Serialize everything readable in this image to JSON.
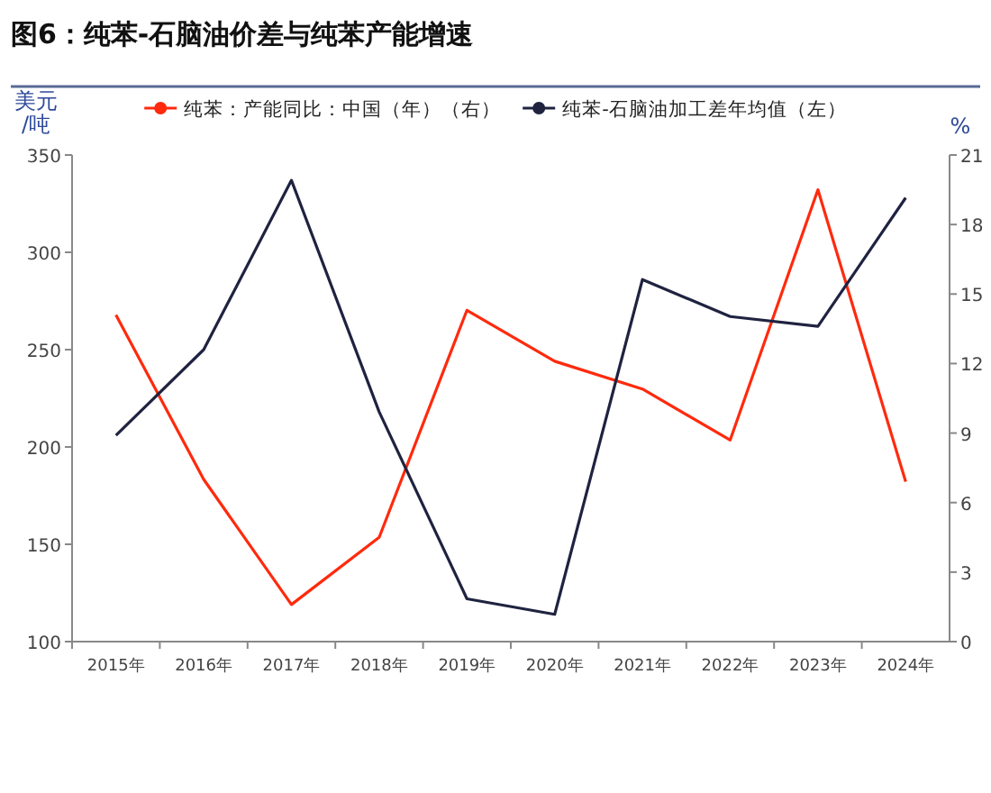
{
  "chart_data": {
    "type": "line",
    "title": "图6：纯苯-石脑油价差与纯苯产能增速",
    "categories": [
      "2015年",
      "2016年",
      "2017年",
      "2018年",
      "2019年",
      "2020年",
      "2021年",
      "2022年",
      "2023年",
      "2024年"
    ],
    "ylabel": "美元/吨",
    "y2label": "%",
    "ylim": [
      100,
      350
    ],
    "yticks": [
      100,
      150,
      200,
      250,
      300,
      350
    ],
    "y2lim": [
      0,
      21
    ],
    "y2ticks": [
      0,
      3,
      6,
      9,
      12,
      15,
      18,
      21
    ],
    "legend": "top",
    "grid": false,
    "series": [
      {
        "name": "纯苯：产能同比：中国（年）（右）",
        "color": "#ff2a0d",
        "axis": "y2",
        "values": [
          14.1,
          7.0,
          1.6,
          4.5,
          14.3,
          12.1,
          10.9,
          8.7,
          19.5,
          6.9
        ]
      },
      {
        "name": "纯苯-石脑油加工差年均值（左）",
        "color": "#1f2340",
        "axis": "y",
        "values": [
          206,
          250,
          337,
          218,
          122,
          114,
          286,
          267,
          262,
          328
        ]
      }
    ]
  }
}
